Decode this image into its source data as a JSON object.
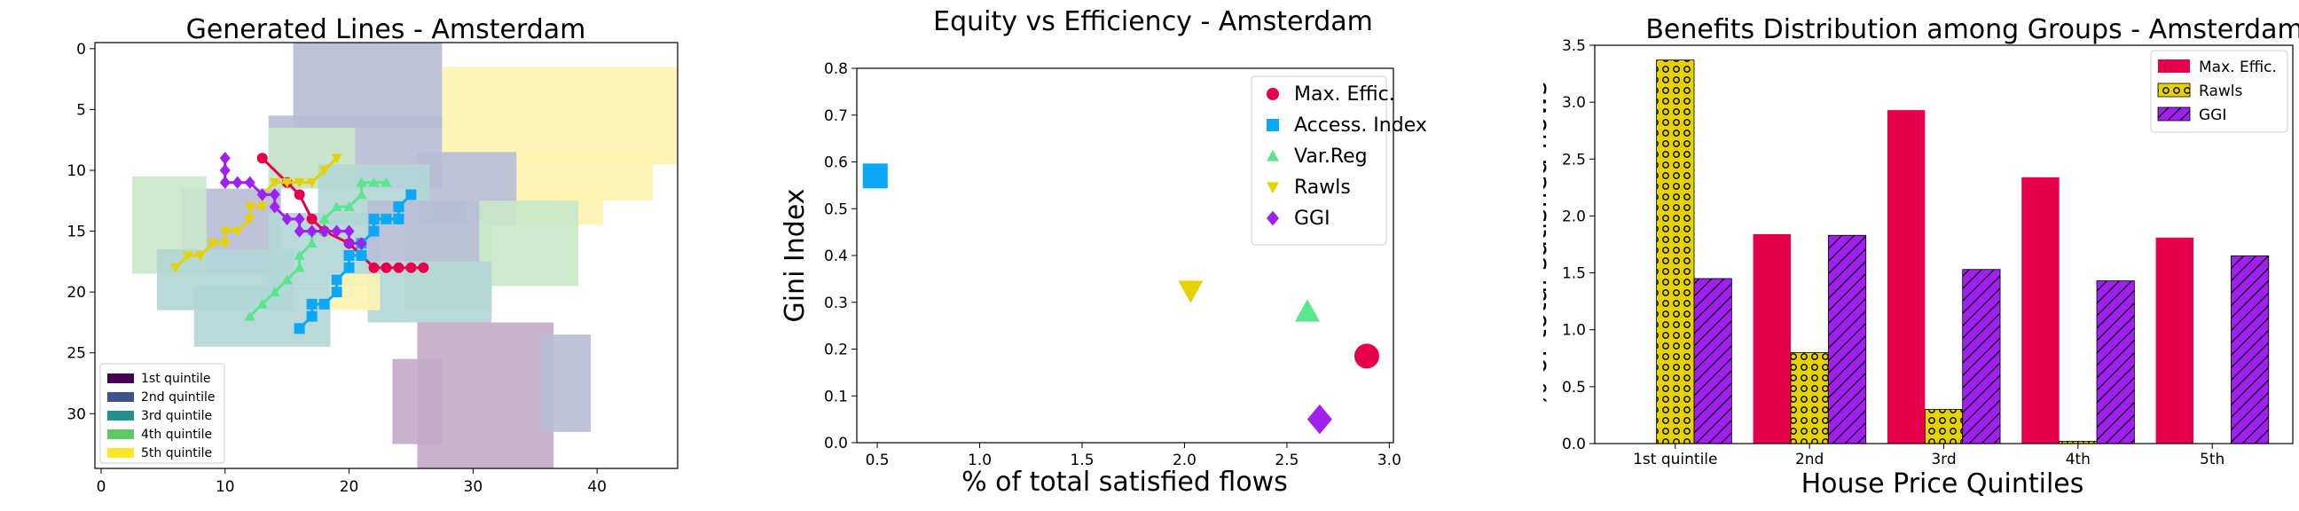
{
  "chart_data": [
    {
      "type": "heatmap",
      "title": "Generated Lines - Amsterdam",
      "xlabel": "",
      "ylabel": "",
      "xlim": [
        -0.5,
        46.5
      ],
      "ylim": [
        34.5,
        -0.5
      ],
      "xticks": [
        0,
        10,
        20,
        30,
        40
      ],
      "yticks": [
        0,
        5,
        10,
        15,
        20,
        25,
        30
      ],
      "legend": {
        "placement": "lower-left",
        "entries": [
          {
            "name": "1st quintile",
            "color": "#440154"
          },
          {
            "name": "2nd quintile",
            "color": "#3b528b"
          },
          {
            "name": "3rd quintile",
            "color": "#21918c"
          },
          {
            "name": "4th quintile",
            "color": "#5ec962"
          },
          {
            "name": "5th quintile",
            "color": "#fde725"
          }
        ]
      },
      "cells": [
        {
          "quintile": 5,
          "x0": 28,
          "y0": 2,
          "x1": 46,
          "y1": 9
        },
        {
          "quintile": 5,
          "x0": 33,
          "y0": 9,
          "x1": 44,
          "y1": 12
        },
        {
          "quintile": 5,
          "x0": 34,
          "y0": 12,
          "x1": 40,
          "y1": 14
        },
        {
          "quintile": 2,
          "x0": 16,
          "y0": 0,
          "x1": 27,
          "y1": 6
        },
        {
          "quintile": 2,
          "x0": 14,
          "y0": 6,
          "x1": 27,
          "y1": 11
        },
        {
          "quintile": 2,
          "x0": 7,
          "y0": 12,
          "x1": 14,
          "y1": 18
        },
        {
          "quintile": 2,
          "x0": 26,
          "y0": 9,
          "x1": 33,
          "y1": 14
        },
        {
          "quintile": 4,
          "x0": 3,
          "y0": 11,
          "x1": 8,
          "y1": 18
        },
        {
          "quintile": 4,
          "x0": 14,
          "y0": 7,
          "x1": 20,
          "y1": 11
        },
        {
          "quintile": 4,
          "x0": 30,
          "y0": 13,
          "x1": 38,
          "y1": 19
        },
        {
          "quintile": 4,
          "x0": 25,
          "y0": 15,
          "x1": 31,
          "y1": 21
        },
        {
          "quintile": 3,
          "x0": 5,
          "y0": 17,
          "x1": 15,
          "y1": 21
        },
        {
          "quintile": 3,
          "x0": 8,
          "y0": 20,
          "x1": 18,
          "y1": 24
        },
        {
          "quintile": 3,
          "x0": 22,
          "y0": 18,
          "x1": 31,
          "y1": 22
        },
        {
          "quintile": 3,
          "x0": 14,
          "y0": 14,
          "x1": 22,
          "y1": 19
        },
        {
          "quintile": 3,
          "x0": 18,
          "y0": 10,
          "x1": 26,
          "y1": 14
        },
        {
          "quintile": 2,
          "x0": 22,
          "y0": 13,
          "x1": 30,
          "y1": 17
        },
        {
          "quintile": 5,
          "x0": 19,
          "y0": 19,
          "x1": 22,
          "y1": 21
        },
        {
          "quintile": 1,
          "x0": 26,
          "y0": 23,
          "x1": 36,
          "y1": 34
        },
        {
          "quintile": 1,
          "x0": 24,
          "y0": 26,
          "x1": 27,
          "y1": 32
        },
        {
          "quintile": 2,
          "x0": 36,
          "y0": 24,
          "x1": 39,
          "y1": 31
        }
      ],
      "series": [
        {
          "name": "Max. Effic.",
          "color": "#e6004c",
          "marker": "circle",
          "points": [
            [
              13,
              9
            ],
            [
              15,
              11
            ],
            [
              16,
              12
            ],
            [
              17,
              14
            ],
            [
              18,
              15
            ],
            [
              20,
              16
            ],
            [
              21,
              17
            ],
            [
              22,
              18
            ],
            [
              23,
              18
            ],
            [
              24,
              18
            ],
            [
              25,
              18
            ],
            [
              26,
              18
            ]
          ]
        },
        {
          "name": "Access. Index",
          "color": "#0aa8f7",
          "marker": "square",
          "points": [
            [
              16,
              23
            ],
            [
              17,
              22
            ],
            [
              17,
              21
            ],
            [
              18,
              21
            ],
            [
              19,
              20
            ],
            [
              19,
              19
            ],
            [
              20,
              18
            ],
            [
              20,
              17
            ],
            [
              21,
              17
            ],
            [
              21,
              16
            ],
            [
              22,
              15
            ],
            [
              22,
              14
            ],
            [
              23,
              14
            ],
            [
              24,
              14
            ],
            [
              24,
              13
            ],
            [
              25,
              12
            ]
          ]
        },
        {
          "name": "Var.Reg",
          "color": "#5ae68c",
          "marker": "triangle-up",
          "points": [
            [
              12,
              22
            ],
            [
              13,
              21
            ],
            [
              14,
              20
            ],
            [
              15,
              19
            ],
            [
              16,
              18
            ],
            [
              16,
              17
            ],
            [
              17,
              16
            ],
            [
              17,
              15
            ],
            [
              18,
              15
            ],
            [
              18,
              14
            ],
            [
              19,
              13
            ],
            [
              20,
              13
            ],
            [
              21,
              12
            ],
            [
              21,
              11
            ],
            [
              22,
              11
            ],
            [
              23,
              11
            ]
          ]
        },
        {
          "name": "Rawls",
          "color": "#e6d200",
          "marker": "triangle-down",
          "points": [
            [
              6,
              18
            ],
            [
              7,
              17
            ],
            [
              8,
              17
            ],
            [
              9,
              16
            ],
            [
              10,
              16
            ],
            [
              10,
              15
            ],
            [
              11,
              15
            ],
            [
              12,
              14
            ],
            [
              12,
              13
            ],
            [
              13,
              13
            ],
            [
              13,
              12
            ],
            [
              14,
              11
            ],
            [
              15,
              11
            ],
            [
              16,
              11
            ],
            [
              17,
              11
            ],
            [
              18,
              10
            ],
            [
              19,
              9
            ]
          ]
        },
        {
          "name": "GGI",
          "color": "#a020f0",
          "marker": "diamond",
          "points": [
            [
              10,
              9
            ],
            [
              10,
              10
            ],
            [
              10,
              11
            ],
            [
              11,
              11
            ],
            [
              12,
              11
            ],
            [
              13,
              12
            ],
            [
              14,
              12
            ],
            [
              14,
              13
            ],
            [
              15,
              14
            ],
            [
              16,
              14
            ],
            [
              16,
              15
            ],
            [
              17,
              15
            ],
            [
              18,
              15
            ],
            [
              19,
              15
            ],
            [
              20,
              15
            ],
            [
              20,
              16
            ],
            [
              21,
              16
            ]
          ]
        }
      ]
    },
    {
      "type": "scatter",
      "title": "Equity vs Efficiency - Amsterdam",
      "xlabel": "% of total satisfied flows",
      "ylabel": "Gini Index",
      "xlim": [
        0.4,
        3.02
      ],
      "ylim": [
        0.0,
        0.8
      ],
      "xticks": [
        0.5,
        1.0,
        1.5,
        2.0,
        2.5,
        3.0
      ],
      "yticks": [
        0.0,
        0.1,
        0.2,
        0.3,
        0.4,
        0.5,
        0.6,
        0.7,
        0.8
      ],
      "legend": {
        "placement": "upper-right"
      },
      "series": [
        {
          "name": "Max. Effic.",
          "color": "#e6004c",
          "marker": "circle",
          "x": 2.89,
          "y": 0.185
        },
        {
          "name": "Access. Index",
          "color": "#0aa8f7",
          "marker": "square",
          "x": 0.49,
          "y": 0.57
        },
        {
          "name": "Var.Reg",
          "color": "#5ae68c",
          "marker": "triangle-up",
          "x": 2.6,
          "y": 0.28
        },
        {
          "name": "Rawls",
          "color": "#e6d200",
          "marker": "triangle-down",
          "x": 2.03,
          "y": 0.325
        },
        {
          "name": "GGI",
          "color": "#a020f0",
          "marker": "diamond",
          "x": 2.66,
          "y": 0.05
        }
      ]
    },
    {
      "type": "bar",
      "title": "Benefits Distribution among Groups - Amsterdam",
      "xlabel": "House Price Quintiles",
      "ylabel": "% of total satisfied flows",
      "ylim": [
        0.0,
        3.5
      ],
      "yticks": [
        0.0,
        0.5,
        1.0,
        1.5,
        2.0,
        2.5,
        3.0,
        3.5
      ],
      "categories": [
        "1st quintile",
        "2nd",
        "3rd",
        "4th",
        "5th"
      ],
      "legend": {
        "placement": "upper-right"
      },
      "series": [
        {
          "name": "Max. Effic.",
          "color": "#e6004c",
          "pattern": "solid",
          "values": [
            0.0,
            1.84,
            2.93,
            2.34,
            1.81
          ]
        },
        {
          "name": "Rawls",
          "color": "#e6d200",
          "pattern": "dots",
          "values": [
            3.37,
            0.8,
            0.3,
            0.02,
            0.0
          ]
        },
        {
          "name": "GGI",
          "color": "#a020f0",
          "pattern": "hatch",
          "values": [
            1.45,
            1.83,
            1.53,
            1.43,
            1.65
          ]
        }
      ]
    }
  ]
}
